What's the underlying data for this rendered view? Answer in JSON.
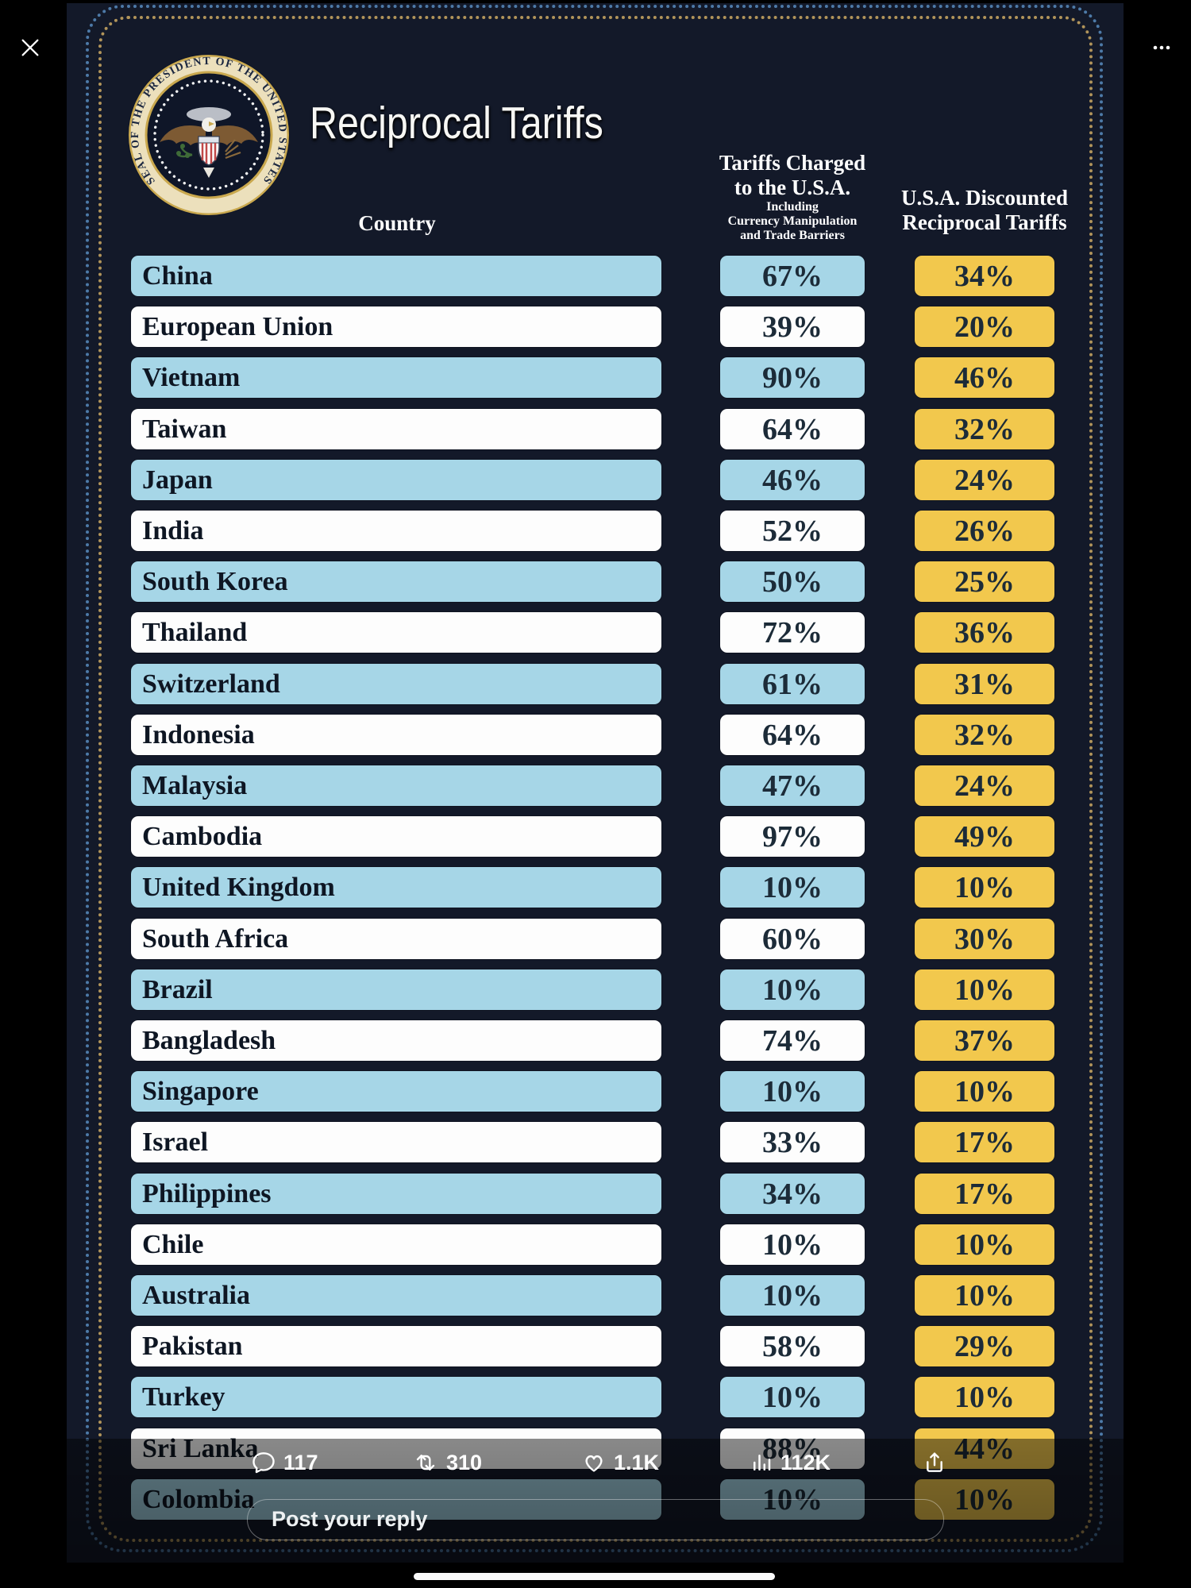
{
  "viewer": {
    "stats": {
      "replies": "117",
      "reposts": "310",
      "likes": "1.1K",
      "views": "112K"
    },
    "reply_placeholder": "Post your reply"
  },
  "poster": {
    "title": "Reciprocal Tariffs",
    "seal_text": "SEAL OF THE PRESIDENT OF THE UNITED STATES",
    "columns": {
      "country": "Country",
      "charged_line1": "Tariffs Charged",
      "charged_line2": "to the U.S.A.",
      "charged_sub1": "Including",
      "charged_sub2": "Currency Manipulation",
      "charged_sub3": "and Trade Barriers",
      "discounted_line1": "U.S.A. Discounted",
      "discounted_line2": "Reciprocal Tariffs"
    },
    "colors": {
      "navy_bg": "#131929",
      "row_blue": "#a6d6e7",
      "row_white": "#fdfdfd",
      "gold": "#f2c84d",
      "border_blue": "#4d7aa8",
      "border_gold": "#b1945a"
    },
    "rows": [
      {
        "country": "China",
        "charged": "67%",
        "discounted": "34%"
      },
      {
        "country": "European Union",
        "charged": "39%",
        "discounted": "20%"
      },
      {
        "country": "Vietnam",
        "charged": "90%",
        "discounted": "46%"
      },
      {
        "country": "Taiwan",
        "charged": "64%",
        "discounted": "32%"
      },
      {
        "country": "Japan",
        "charged": "46%",
        "discounted": "24%"
      },
      {
        "country": "India",
        "charged": "52%",
        "discounted": "26%"
      },
      {
        "country": "South Korea",
        "charged": "50%",
        "discounted": "25%"
      },
      {
        "country": "Thailand",
        "charged": "72%",
        "discounted": "36%"
      },
      {
        "country": "Switzerland",
        "charged": "61%",
        "discounted": "31%"
      },
      {
        "country": "Indonesia",
        "charged": "64%",
        "discounted": "32%"
      },
      {
        "country": "Malaysia",
        "charged": "47%",
        "discounted": "24%"
      },
      {
        "country": "Cambodia",
        "charged": "97%",
        "discounted": "49%"
      },
      {
        "country": "United Kingdom",
        "charged": "10%",
        "discounted": "10%"
      },
      {
        "country": "South Africa",
        "charged": "60%",
        "discounted": "30%"
      },
      {
        "country": "Brazil",
        "charged": "10%",
        "discounted": "10%"
      },
      {
        "country": "Bangladesh",
        "charged": "74%",
        "discounted": "37%"
      },
      {
        "country": "Singapore",
        "charged": "10%",
        "discounted": "10%"
      },
      {
        "country": "Israel",
        "charged": "33%",
        "discounted": "17%"
      },
      {
        "country": "Philippines",
        "charged": "34%",
        "discounted": "17%"
      },
      {
        "country": "Chile",
        "charged": "10%",
        "discounted": "10%"
      },
      {
        "country": "Australia",
        "charged": "10%",
        "discounted": "10%"
      },
      {
        "country": "Pakistan",
        "charged": "58%",
        "discounted": "29%"
      },
      {
        "country": "Turkey",
        "charged": "10%",
        "discounted": "10%"
      },
      {
        "country": "Sri Lanka",
        "charged": "88%",
        "discounted": "44%"
      },
      {
        "country": "Colombia",
        "charged": "10%",
        "discounted": "10%"
      }
    ]
  }
}
